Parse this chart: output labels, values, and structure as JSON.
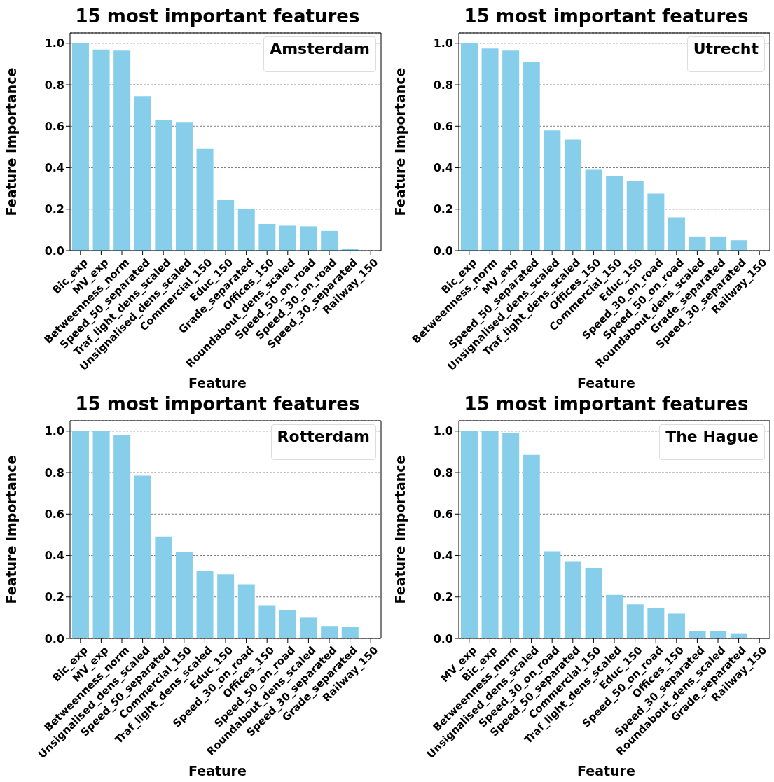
{
  "chart_data": [
    {
      "type": "bar",
      "title": "15 most important features",
      "xlabel": "Feature",
      "ylabel": "Feature Importance",
      "annotations": [
        "Amsterdam"
      ],
      "grid": "y",
      "ylim": [
        0,
        1.05
      ],
      "yticks": [
        {
          "value": 0,
          "label": "0.0"
        },
        {
          "value": 0.2,
          "label": "0.2"
        },
        {
          "value": 0.4,
          "label": "0.4"
        },
        {
          "value": 0.6,
          "label": "0.6"
        },
        {
          "value": 0.8,
          "label": "0.8"
        },
        {
          "value": 1,
          "label": "1.0"
        }
      ],
      "categories": [
        "Bic_exp",
        "MV_exp",
        "Betweenness_norm",
        "Speed_50_separated",
        "Traf_light_dens_scaled",
        "Unsignalised_dens_scaled",
        "Commercial_150",
        "Educ_150",
        "Grade_separated",
        "Offices_150",
        "Roundabout_dens_scaled",
        "Speed_50_on_road",
        "Speed_30_on_road",
        "Speed_30_separated",
        "Railway_150"
      ],
      "series": [
        {
          "color": "#87ceeb",
          "values": [
            1.0,
            0.97,
            0.965,
            0.745,
            0.63,
            0.62,
            0.49,
            0.245,
            0.2,
            0.128,
            0.12,
            0.117,
            0.095,
            0.007,
            0
          ]
        }
      ]
    },
    {
      "type": "bar",
      "title": "15 most important features",
      "xlabel": "Feature",
      "ylabel": "Feature Importance",
      "annotations": [
        "Utrecht"
      ],
      "grid": "y",
      "ylim": [
        0,
        1.05
      ],
      "yticks": [
        {
          "value": 0,
          "label": "0.0"
        },
        {
          "value": 0.2,
          "label": "0.2"
        },
        {
          "value": 0.4,
          "label": "0.4"
        },
        {
          "value": 0.6,
          "label": "0.6"
        },
        {
          "value": 0.8,
          "label": "0.8"
        },
        {
          "value": 1,
          "label": "1.0"
        }
      ],
      "categories": [
        "Bic_exp",
        "Betweenness_norm",
        "MV_exp",
        "Speed_50_separated",
        "Unsignalised_dens_scaled",
        "Traf_light_dens_scaled",
        "Offices_150",
        "Commercial_150",
        "Educ_150",
        "Speed_30_on_road",
        "Speed_50_on_road",
        "Roundabout_dens_scaled",
        "Grade_separated",
        "Speed_30_separated",
        "Railway_150"
      ],
      "series": [
        {
          "color": "#87ceeb",
          "values": [
            1.0,
            0.975,
            0.965,
            0.91,
            0.58,
            0.535,
            0.39,
            0.36,
            0.335,
            0.275,
            0.16,
            0.068,
            0.068,
            0.05,
            0
          ]
        }
      ]
    },
    {
      "type": "bar",
      "title": "15 most important features",
      "xlabel": "Feature",
      "ylabel": "Feature Importance",
      "annotations": [
        "Rotterdam"
      ],
      "grid": "y",
      "ylim": [
        0,
        1.05
      ],
      "yticks": [
        {
          "value": 0,
          "label": "0.0"
        },
        {
          "value": 0.2,
          "label": "0.2"
        },
        {
          "value": 0.4,
          "label": "0.4"
        },
        {
          "value": 0.6,
          "label": "0.6"
        },
        {
          "value": 0.8,
          "label": "0.8"
        },
        {
          "value": 1,
          "label": "1.0"
        }
      ],
      "categories": [
        "Bic_exp",
        "MV_exp",
        "Betweenness_norm",
        "Unsignalised_dens_scaled",
        "Speed_50_separated",
        "Commercial_150",
        "Traf_light_dens_scaled",
        "Educ_150",
        "Speed_30_on_road",
        "Offices_150",
        "Speed_50_on_road",
        "Roundabout_dens_scaled",
        "Speed_30_separated",
        "Grade_separated",
        "Railway_150"
      ],
      "series": [
        {
          "color": "#87ceeb",
          "values": [
            1.0,
            1.0,
            0.98,
            0.785,
            0.49,
            0.415,
            0.325,
            0.31,
            0.262,
            0.16,
            0.135,
            0.1,
            0.06,
            0.055,
            0
          ]
        }
      ]
    },
    {
      "type": "bar",
      "title": "15 most important features",
      "xlabel": "Feature",
      "ylabel": "Feature Importance",
      "annotations": [
        "The Hague"
      ],
      "grid": "y",
      "ylim": [
        0,
        1.05
      ],
      "yticks": [
        {
          "value": 0,
          "label": "0.0"
        },
        {
          "value": 0.2,
          "label": "0.2"
        },
        {
          "value": 0.4,
          "label": "0.4"
        },
        {
          "value": 0.6,
          "label": "0.6"
        },
        {
          "value": 0.8,
          "label": "0.8"
        },
        {
          "value": 1,
          "label": "1.0"
        }
      ],
      "categories": [
        "MV_exp",
        "Bic_exp",
        "Betweenness_norm",
        "Unsignalised_dens_scaled",
        "Speed_30_on_road",
        "Speed_50_separated",
        "Commercial_150",
        "Traf_light_dens_scaled",
        "Educ_150",
        "Speed_50_on_road",
        "Offices_150",
        "Speed_30_separated",
        "Roundabout_dens_scaled",
        "Grade_separated",
        "Railway_150"
      ],
      "series": [
        {
          "color": "#87ceeb",
          "values": [
            1.0,
            1.0,
            0.99,
            0.885,
            0.42,
            0.37,
            0.34,
            0.21,
            0.165,
            0.147,
            0.12,
            0.035,
            0.035,
            0.025,
            0
          ]
        }
      ]
    }
  ]
}
